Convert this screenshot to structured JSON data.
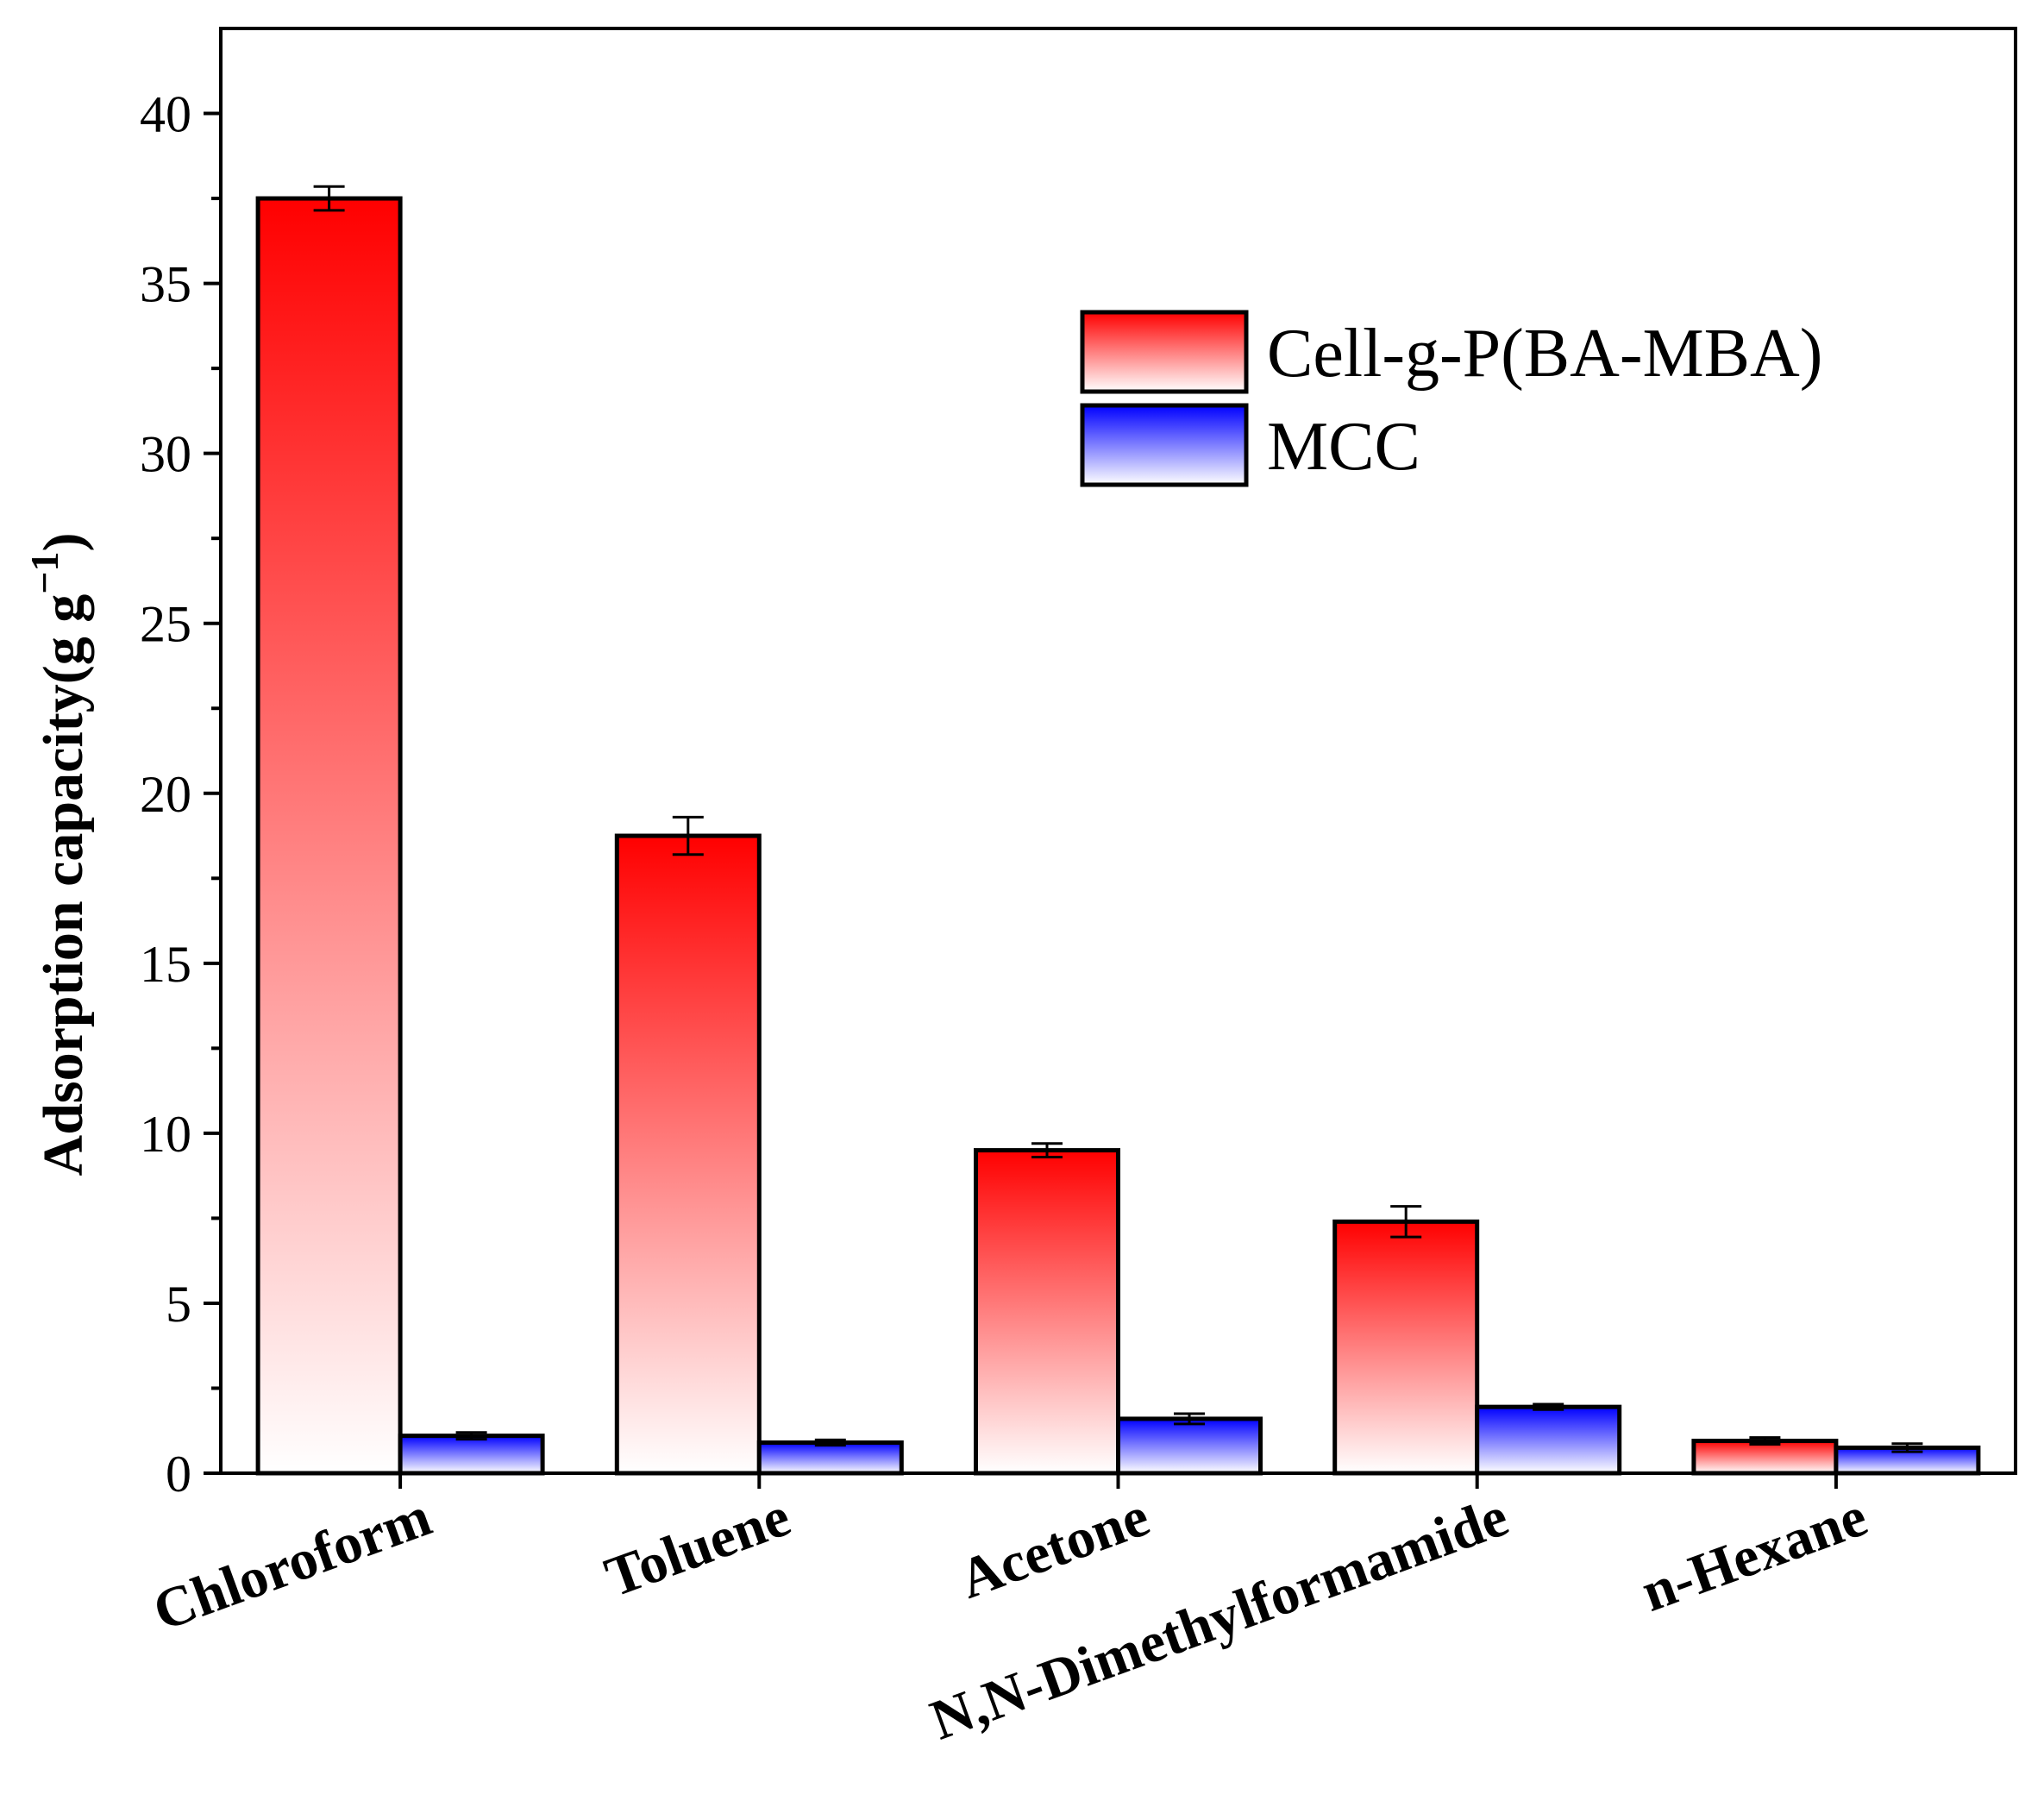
{
  "chart_data": {
    "type": "bar",
    "title": "",
    "xlabel": "",
    "ylabel": "Adsorption capacity(g g",
    "ylabel_superscript": "−1",
    "ylabel_close": ")",
    "ylim": [
      0,
      42.5
    ],
    "yticks": [
      0,
      5,
      10,
      15,
      20,
      25,
      30,
      35,
      40
    ],
    "ytick_labels": [
      "0",
      "5",
      "10",
      "15",
      "20",
      "25",
      "30",
      "35",
      "40"
    ],
    "grid": false,
    "legend_position": "upper-right",
    "categories": [
      "Chloroform",
      "Toluene",
      "Acetone",
      "N,N-Dimethylformamide",
      "n-Hexane"
    ],
    "series": [
      {
        "name": "Cell-g-P(BA-MBA)",
        "color_top": "#ff0000",
        "color_bottom": "#ffffff",
        "values": [
          37.5,
          18.75,
          9.5,
          7.4,
          0.95
        ],
        "errors": [
          0.35,
          0.55,
          0.2,
          0.45,
          0.1
        ]
      },
      {
        "name": "MCC",
        "color_top": "#0000ff",
        "color_bottom": "#ffffff",
        "values": [
          1.1,
          0.9,
          1.6,
          1.95,
          0.75
        ],
        "errors": [
          0.1,
          0.08,
          0.15,
          0.08,
          0.12
        ]
      }
    ]
  }
}
